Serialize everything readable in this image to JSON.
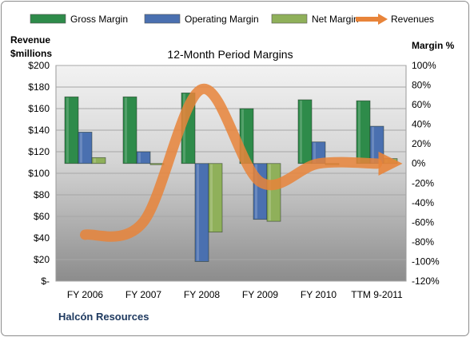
{
  "chart_data": {
    "type": "bar",
    "title": "12-Month Period Margins",
    "left_axis_label": [
      "Revenue",
      "$millions"
    ],
    "right_axis_label": "Margin %",
    "company": "Halcón Resources",
    "categories": [
      "FY 2006",
      "FY 2007",
      "FY 2008",
      "FY 2009",
      "FY 2010",
      "TTM 9-2011"
    ],
    "left_ticks": [
      "$-",
      "$20",
      "$40",
      "$60",
      "$80",
      "$100",
      "$120",
      "$140",
      "$160",
      "$180",
      "$200"
    ],
    "right_ticks": [
      "-120%",
      "-100%",
      "-80%",
      "-60%",
      "-40%",
      "-20%",
      "0%",
      "20%",
      "40%",
      "60%",
      "80%",
      "100%"
    ],
    "left_range": [
      0,
      200
    ],
    "right_range": [
      -120,
      100
    ],
    "series": [
      {
        "name": "Gross Margin",
        "axis": "right",
        "color": "#2e8b4a",
        "values": [
          68,
          68,
          72,
          56,
          65,
          64
        ]
      },
      {
        "name": "Operating Margin",
        "axis": "right",
        "color": "#4a70b0",
        "values": [
          32,
          12,
          -100,
          -57,
          22,
          38
        ]
      },
      {
        "name": "Net Margin",
        "axis": "right",
        "color": "#8fb05a",
        "values": [
          6,
          0,
          -70,
          -59,
          0,
          5
        ]
      },
      {
        "name": "Revenues",
        "axis": "left",
        "type": "line",
        "color": "#e8843a",
        "values": [
          43,
          55,
          178,
          92,
          109,
          109
        ]
      }
    ],
    "grid": true,
    "legend_position": "top"
  }
}
